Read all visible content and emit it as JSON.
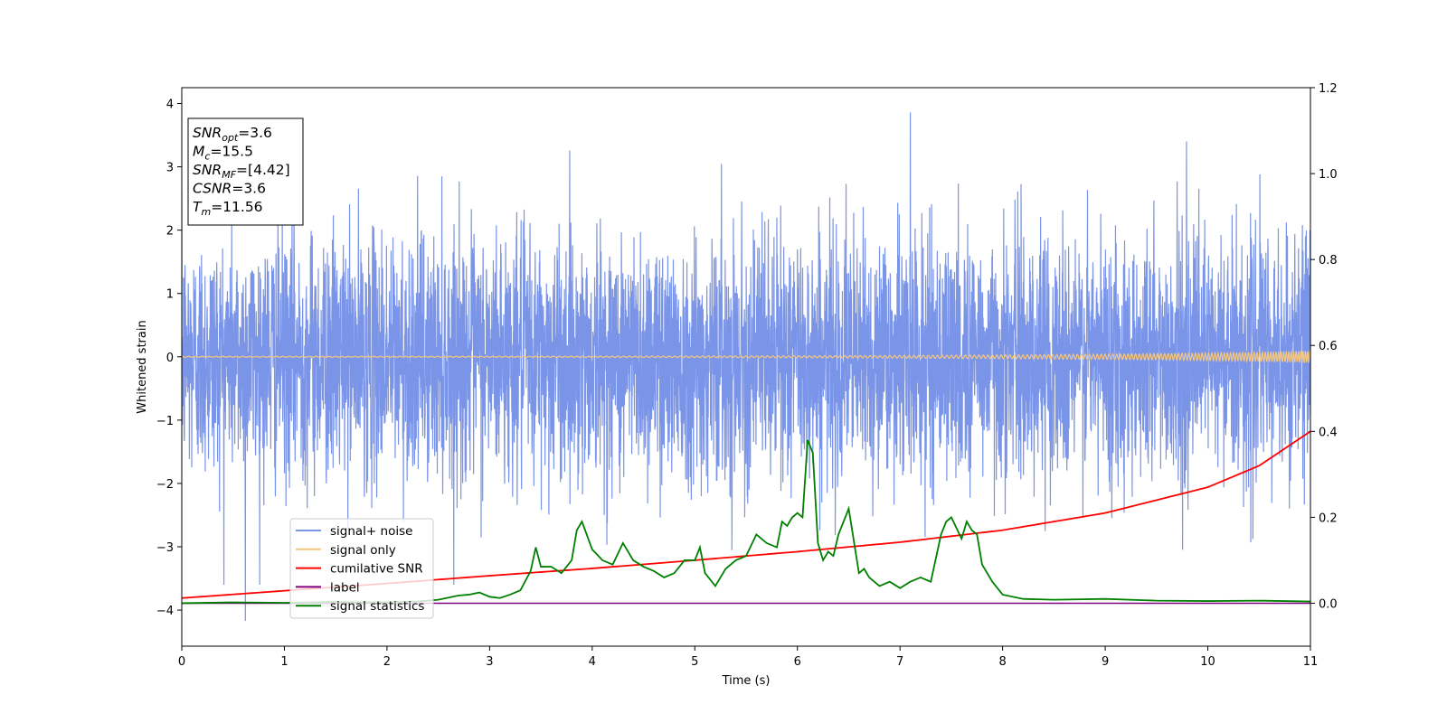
{
  "chart_data": {
    "type": "line",
    "title": "",
    "xlabel": "Time (s)",
    "ylabel": "Whitened strain",
    "y2label": "",
    "xlim": [
      0,
      11
    ],
    "ylim": [
      -4.57,
      4.25
    ],
    "y2lim": [
      -0.1,
      1.2
    ],
    "xticks": [
      "0",
      "1",
      "2",
      "3",
      "4",
      "5",
      "6",
      "7",
      "8",
      "9",
      "10",
      "11"
    ],
    "yticks": [
      "4",
      "3",
      "2",
      "1",
      "0",
      "−1",
      "−2",
      "−3",
      "−4"
    ],
    "y2ticks": [
      "1.2",
      "1.0",
      "0.8",
      "0.6",
      "0.4",
      "0.2",
      "0.0"
    ],
    "grid": false,
    "legend_position": "lower-left",
    "info_box": [
      {
        "main": "SNR",
        "sub": "opt",
        "rest": "=3.6"
      },
      {
        "main": "M",
        "sub": "c",
        "rest": "=15.5"
      },
      {
        "main": "SNR",
        "sub": "MF",
        "rest": "=[4.42]"
      },
      {
        "main": "CSNR",
        "sub": "",
        "rest": "=3.6"
      },
      {
        "main": "T",
        "sub": "m",
        "rest": "=11.56"
      }
    ],
    "series": [
      {
        "name": "signal+ noise",
        "color": "#7a94e8",
        "axis": "left",
        "description_values": "dense noise, mostly within [-2.5, 2.5], peaks up to 3.86 near t=7.1 and down to -4.17 near t=0.62",
        "noise_std": 0.95,
        "noise_max": 3.86,
        "noise_min": -4.17
      },
      {
        "name": "signal only",
        "color": "#f5c77e",
        "axis": "left",
        "description_values": "chirp centered at 0, amplitude growing from ~0.01 to ~0.1 at t=11",
        "amplitude_end": 0.1
      },
      {
        "name": "cumilative SNR",
        "color": "#ff0000",
        "axis": "right",
        "x": [
          0,
          1,
          2,
          3,
          4,
          5,
          6,
          7,
          8,
          9,
          10,
          10.5,
          11
        ],
        "values": [
          0.012,
          0.029,
          0.046,
          0.064,
          0.081,
          0.1,
          0.12,
          0.142,
          0.17,
          0.21,
          0.27,
          0.32,
          0.4
        ]
      },
      {
        "name": "label",
        "color": "#800080",
        "axis": "right",
        "x": [
          0,
          11
        ],
        "values": [
          0.0,
          0.0
        ]
      },
      {
        "name": "signal statistics",
        "color": "#008000",
        "axis": "right",
        "x": [
          0,
          0.5,
          1,
          1.5,
          2,
          2.3,
          2.5,
          2.7,
          2.8,
          2.9,
          3.0,
          3.1,
          3.2,
          3.3,
          3.4,
          3.45,
          3.5,
          3.6,
          3.7,
          3.8,
          3.85,
          3.9,
          4.0,
          4.1,
          4.2,
          4.3,
          4.4,
          4.5,
          4.6,
          4.7,
          4.8,
          4.9,
          5.0,
          5.05,
          5.1,
          5.2,
          5.3,
          5.4,
          5.5,
          5.6,
          5.7,
          5.8,
          5.85,
          5.9,
          5.95,
          6.0,
          6.05,
          6.1,
          6.15,
          6.2,
          6.25,
          6.3,
          6.35,
          6.4,
          6.5,
          6.6,
          6.65,
          6.7,
          6.8,
          6.9,
          7.0,
          7.1,
          7.2,
          7.3,
          7.4,
          7.45,
          7.5,
          7.6,
          7.65,
          7.7,
          7.75,
          7.8,
          7.9,
          8.0,
          8.2,
          8.5,
          9.0,
          9.5,
          10.0,
          10.5,
          11.0
        ],
        "values": [
          0.0,
          0.002,
          0.001,
          0.003,
          0.002,
          0.004,
          0.008,
          0.018,
          0.02,
          0.025,
          0.015,
          0.012,
          0.02,
          0.03,
          0.075,
          0.13,
          0.085,
          0.085,
          0.07,
          0.1,
          0.17,
          0.19,
          0.125,
          0.1,
          0.09,
          0.14,
          0.1,
          0.085,
          0.075,
          0.06,
          0.07,
          0.1,
          0.1,
          0.13,
          0.07,
          0.04,
          0.08,
          0.1,
          0.11,
          0.16,
          0.14,
          0.13,
          0.19,
          0.18,
          0.2,
          0.21,
          0.2,
          0.38,
          0.35,
          0.14,
          0.1,
          0.12,
          0.11,
          0.16,
          0.22,
          0.07,
          0.08,
          0.06,
          0.04,
          0.05,
          0.035,
          0.05,
          0.06,
          0.05,
          0.16,
          0.19,
          0.2,
          0.15,
          0.19,
          0.17,
          0.16,
          0.09,
          0.05,
          0.02,
          0.01,
          0.008,
          0.01,
          0.006,
          0.005,
          0.006,
          0.004
        ]
      }
    ]
  }
}
